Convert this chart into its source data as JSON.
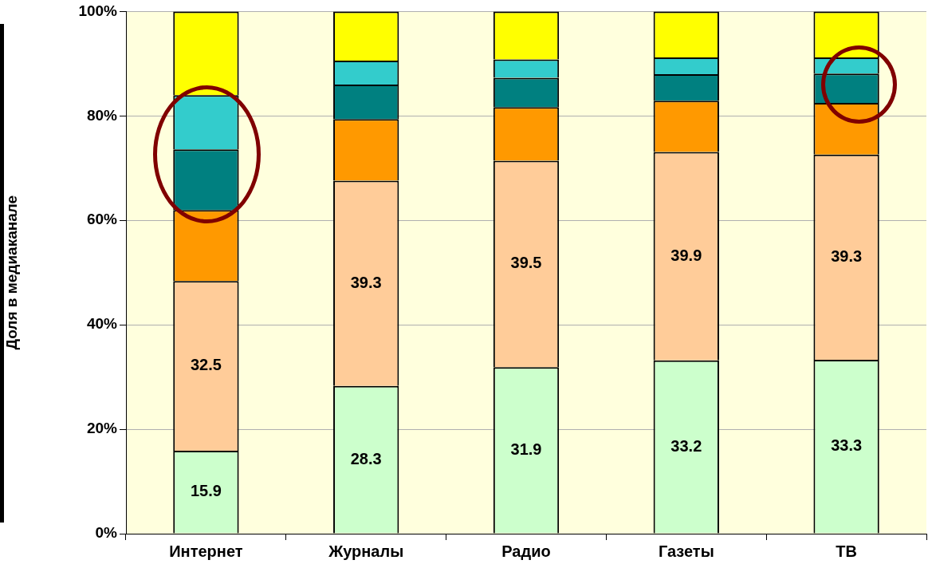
{
  "chart_data": {
    "type": "bar",
    "stacked": true,
    "ylabel": "Доля в медиаканале",
    "categories": [
      "Интернет",
      "Журналы",
      "Радио",
      "Газеты",
      "ТВ"
    ],
    "ylim": [
      0,
      100
    ],
    "yticks": [
      {
        "value": 0,
        "label": "0%"
      },
      {
        "value": 20,
        "label": "20%"
      },
      {
        "value": 40,
        "label": "40%"
      },
      {
        "value": 60,
        "label": "60%"
      },
      {
        "value": 80,
        "label": "80%"
      },
      {
        "value": 100,
        "label": "100%"
      }
    ],
    "grid": "y",
    "series": [
      {
        "color": "#ccffcc",
        "values": [
          15.9,
          28.3,
          31.9,
          33.2,
          33.3
        ],
        "value_labels": [
          "15.9",
          "28.3",
          "31.9",
          "33.2",
          "33.3"
        ]
      },
      {
        "color": "#ffcc99",
        "values": [
          32.5,
          39.3,
          39.5,
          39.9,
          39.3
        ],
        "value_labels": [
          "32.5",
          "39.3",
          "39.5",
          "39.9",
          "39.3"
        ]
      },
      {
        "color": "#ff9900",
        "values": [
          13.6,
          11.8,
          10.3,
          9.8,
          9.9
        ]
      },
      {
        "color": "#008080",
        "values": [
          11.6,
          6.6,
          5.6,
          5.1,
          5.6
        ]
      },
      {
        "color": "#33cccc",
        "values": [
          10.4,
          4.6,
          3.5,
          3.2,
          3.1
        ]
      },
      {
        "color": "#ffff00",
        "values": [
          16.0,
          9.4,
          9.2,
          8.8,
          8.8
        ]
      }
    ]
  }
}
